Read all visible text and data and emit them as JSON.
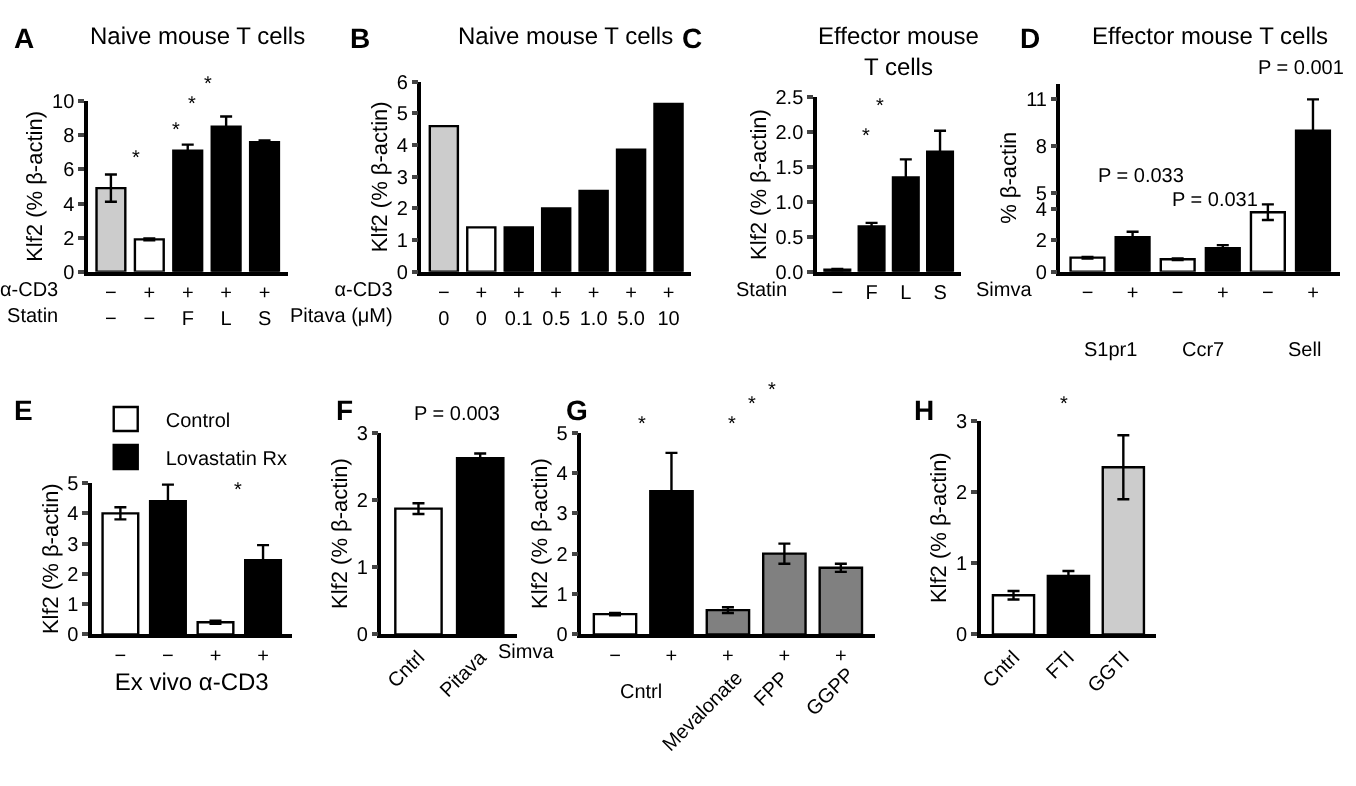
{
  "chart_data": [
    {
      "type": "bar",
      "title": "A",
      "subtitle": "Naive mouse T cells",
      "ylabel": "Klf2 (% β-actin)",
      "xlabel": "α-CD3\nStatin",
      "categories": [
        "−\n−",
        "+\n−",
        "+\nF",
        "+\nL",
        "+\nS"
      ],
      "values": [
        4.9,
        1.9,
        7.1,
        8.5,
        7.6
      ],
      "errors": [
        0.8,
        0.05,
        0.35,
        0.6,
        0.1
      ],
      "colors": [
        "#cccccc",
        "#ffffff",
        "#000000",
        "#000000",
        "#000000"
      ],
      "ylim": [
        0,
        10
      ],
      "yticks": [
        0,
        2,
        4,
        6,
        8,
        10
      ],
      "annotations": [
        "*",
        "*",
        "*",
        "*"
      ]
    },
    {
      "type": "bar",
      "title": "B",
      "subtitle": "Naive mouse T cells",
      "ylabel": "Klf2 (% β-actin)",
      "xlabel": "α-CD3\nPitava (μM)",
      "categories": [
        "−\n0",
        "+\n0",
        "+\n0.1",
        "+\n0.5",
        "+\n1.0",
        "+\n5.0",
        "+\n10"
      ],
      "values": [
        4.6,
        1.4,
        1.4,
        2.0,
        2.55,
        3.85,
        5.3
      ],
      "colors": [
        "#cccccc",
        "#ffffff",
        "#000000",
        "#000000",
        "#000000",
        "#000000",
        "#000000"
      ],
      "ylim": [
        0,
        6
      ],
      "yticks": [
        0,
        1,
        2,
        3,
        4,
        5,
        6
      ]
    },
    {
      "type": "bar",
      "title": "C",
      "subtitle": "Effector mouse\nT cells",
      "ylabel": "Klf2 (% β-actin)",
      "xlabel": "Statin",
      "categories": [
        "−",
        "F",
        "L",
        "S"
      ],
      "values": [
        0.03,
        0.65,
        1.35,
        1.72
      ],
      "errors": [
        0.01,
        0.05,
        0.26,
        0.3
      ],
      "colors": [
        "#000000",
        "#000000",
        "#000000",
        "#000000"
      ],
      "ylim": [
        0,
        2.5
      ],
      "yticks": [
        {
          "value": 0,
          "label": "0.0"
        },
        0.5,
        {
          "value": 1,
          "label": "1.0"
        },
        1.5,
        {
          "value": 2,
          "label": "2.0"
        },
        2.5
      ],
      "annotations": [
        "*",
        "*"
      ]
    },
    {
      "type": "bar",
      "title": "D",
      "subtitle": "Effector mouse T cells",
      "ylabel": "% β-actin",
      "xlabel": "Simva",
      "categories": [
        "−",
        "+",
        "−",
        "+",
        "−",
        "+"
      ],
      "values": [
        0.9,
        2.2,
        0.8,
        1.5,
        3.8,
        9.0
      ],
      "errors": [
        0.05,
        0.35,
        0.05,
        0.2,
        0.5,
        2.0
      ],
      "colors": [
        "#ffffff",
        "#000000",
        "#ffffff",
        "#000000",
        "#ffffff",
        "#000000"
      ],
      "ylim": [
        0,
        12
      ],
      "yticks": [
        0,
        2,
        4,
        5,
        8,
        11
      ],
      "annotations": [
        "P = 0.033",
        "P = 0.031",
        "P = 0.001",
        "S1pr1",
        "Ccr7",
        "Sell"
      ]
    },
    {
      "type": "bar",
      "title": "E",
      "ylabel": "Klf2 (% β-actin)",
      "xlabel": "Ex vivo α-CD3",
      "categories": [
        "−",
        "−",
        "+",
        "+"
      ],
      "series": [
        {
          "name": "Control",
          "color": "#ffffff",
          "values": [
            4.0,
            null,
            0.4,
            null
          ],
          "errors": [
            0.2,
            null,
            0.05,
            null
          ]
        },
        {
          "name": "Lovastatin Rx",
          "color": "#000000",
          "values": [
            null,
            4.4,
            null,
            2.45
          ],
          "errors": [
            null,
            0.55,
            null,
            0.5
          ]
        }
      ],
      "ylim": [
        0,
        5
      ],
      "yticks": [
        0,
        1,
        2,
        3,
        4,
        5
      ],
      "legend": "top",
      "annotations": [
        "*"
      ]
    },
    {
      "type": "bar",
      "title": "F",
      "ylabel": "Klf2 (% β-actin)",
      "categories": [
        "Cntrl",
        "Pitava"
      ],
      "values": [
        1.87,
        2.62
      ],
      "errors": [
        0.08,
        0.07
      ],
      "colors": [
        "#ffffff",
        "#000000"
      ],
      "ylim": [
        0,
        3
      ],
      "yticks": [
        0,
        1,
        2,
        3
      ],
      "annotations": [
        "P = 0.003"
      ]
    },
    {
      "type": "bar",
      "title": "G",
      "ylabel": "Klf2 (% β-actin)",
      "xlabel": "Simva",
      "categories": [
        "−",
        "+",
        "+",
        "+",
        "+"
      ],
      "values": [
        0.5,
        3.55,
        0.6,
        2.0,
        1.65
      ],
      "errors": [
        0.03,
        0.95,
        0.07,
        0.25,
        0.1
      ],
      "colors": [
        "#ffffff",
        "#000000",
        "#808080",
        "#808080",
        "#808080"
      ],
      "ylim": [
        0,
        5
      ],
      "yticks": [
        0,
        1,
        2,
        3,
        4,
        5
      ],
      "annotations": [
        "*",
        "*",
        "*",
        "*",
        "Cntrl",
        "Mevalonate",
        "FPP",
        "GGPP"
      ]
    },
    {
      "type": "bar",
      "title": "H",
      "ylabel": "Klf2 (% β-actin)",
      "categories": [
        "Cntrl",
        "FTI",
        "GGTI"
      ],
      "values": [
        0.55,
        0.82,
        2.35
      ],
      "errors": [
        0.06,
        0.07,
        0.45
      ],
      "colors": [
        "#ffffff",
        "#000000",
        "#cccccc"
      ],
      "ylim": [
        0,
        3
      ],
      "yticks": [
        0,
        1,
        2,
        3
      ],
      "annotations": [
        "*"
      ]
    }
  ]
}
